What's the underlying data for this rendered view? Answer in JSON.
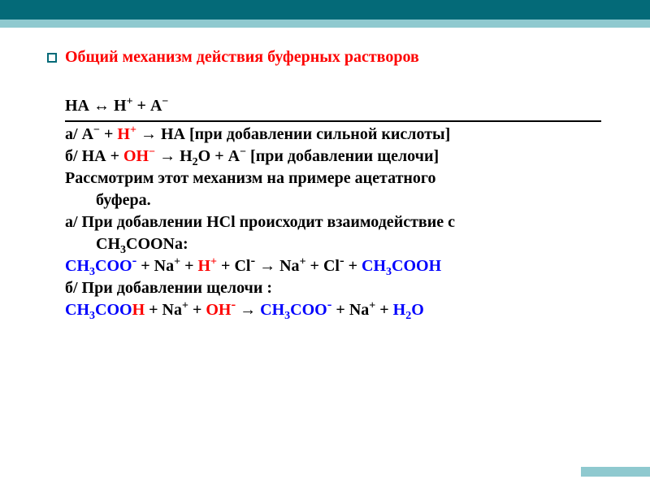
{
  "colors": {
    "accent_dark": "#046a78",
    "accent_light": "#8fc9cf",
    "red": "#fd0100",
    "blue": "#0101fd",
    "black": "#000000",
    "background": "#ffffff"
  },
  "typography": {
    "font_family": "Times New Roman",
    "title_size_pt": 20,
    "body_size_pt": 20,
    "weight": "bold"
  },
  "title": "Общий механизм действия буферных растворов",
  "eq_main": {
    "left": "НА",
    "arrow": "↔",
    "right_h": "Н",
    "right_h_sup": "+",
    "plus": " + ",
    "right_a": "А",
    "right_a_sup": "−"
  },
  "line_a": {
    "prefix": "а/   ",
    "a": "А",
    "a_sup": "−",
    "plus1": " + ",
    "h": "Н",
    "h_sup": "+",
    "arrow": " → ",
    "ha": "НА ",
    "note": "[при добавлении сильной кислоты]"
  },
  "line_b": {
    "prefix": "б/   ",
    "ha": "НА",
    "plus1": " + ",
    "oh": "ОН",
    "oh_sup": "−",
    "arrow": " → ",
    "h2o_h": "Н",
    "h2o_2": "2",
    "h2o_o": "О",
    "plus2": " + ",
    "a": "А",
    "a_sup": "−",
    "note": " [при добавлении щелочи]"
  },
  "para1_l1": "Рассмотрим этот механизм на примере ацетатного",
  "para1_l2": "буфера.",
  "para2_l1": "а/ При добавлении НСl происходит взаимодействие с",
  "para2_l2_ch": "СН",
  "para2_l2_3": "3",
  "para2_l2_rest": "СООNa:",
  "reaction1": {
    "t1": "CH",
    "t1_sub": "3",
    "t2": "COO",
    "t2_sup": "-",
    "plus1": " + ",
    "na1": "Na",
    "na1_sup": "+",
    "plus2": " + ",
    "h": "H",
    "h_sup": "+",
    "plus3": " + ",
    "cl1": "Cl",
    "cl1_sup": "-",
    "arrow": " → ",
    "na2": "Na",
    "na2_sup": "+",
    "plus4": " + ",
    "cl2": "Cl",
    "cl2_sup": "-",
    "plus5": " + ",
    "p1": "CH",
    "p1_sub": "3",
    "p2": "COOH"
  },
  "para3": "б/ При добавлении щелочи :",
  "reaction2": {
    "t1": "CH",
    "t1_sub": "3",
    "t2": "COO",
    "t2_h": "H",
    "plus1": " + ",
    "na1": "Na",
    "na1_sup": "+",
    "plus2": " + ",
    "oh": "OH",
    "oh_sup": "-",
    "arrow": " → ",
    "p1": "CH",
    "p1_sub": "3",
    "p2": "COO",
    "p2_sup": "-",
    "plus3": " + ",
    "na2": "Na",
    "na2_sup": "+",
    "plus4": " + ",
    "h2o_h": "H",
    "h2o_2": "2",
    "h2o_o": "O"
  }
}
